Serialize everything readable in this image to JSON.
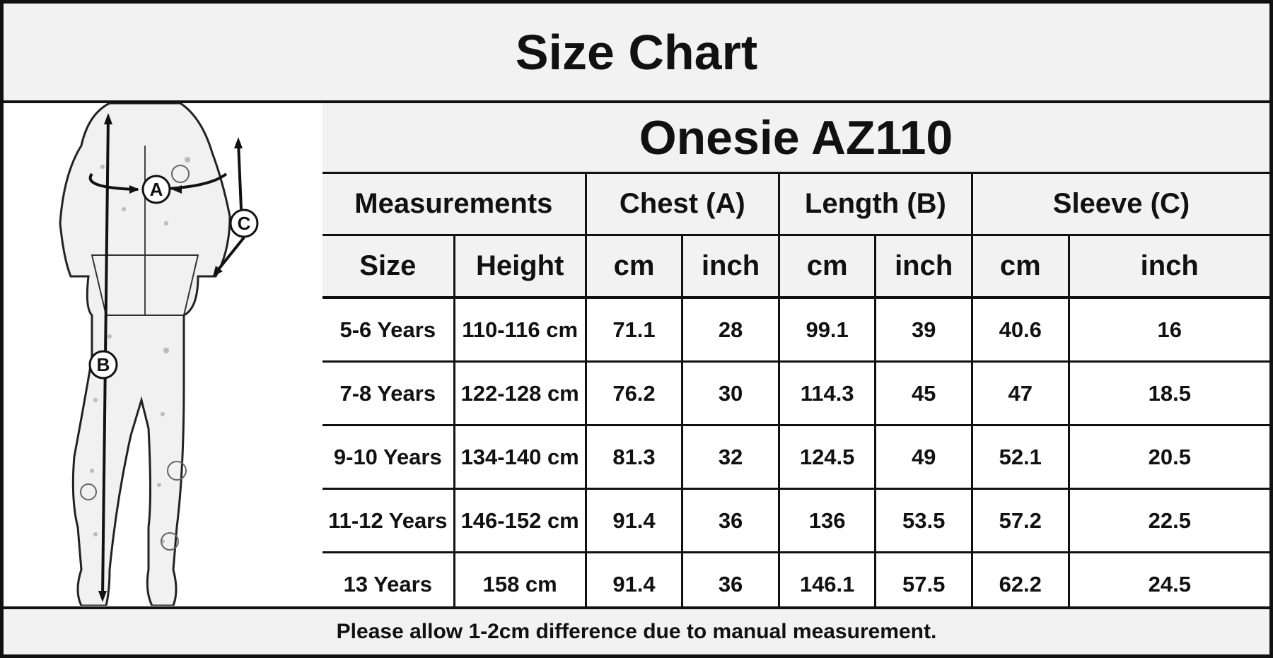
{
  "title": "Size Chart",
  "product": "Onesie AZ110",
  "headers": {
    "measurements": "Measurements",
    "chest": "Chest (A)",
    "length": "Length (B)",
    "sleeve": "Sleeve (C)",
    "size": "Size",
    "height": "Height",
    "cm": "cm",
    "inch": "inch"
  },
  "rows": [
    {
      "size": "5-6 Years",
      "height": "110-116 cm",
      "chest_cm": "71.1",
      "chest_in": "28",
      "length_cm": "99.1",
      "length_in": "39",
      "sleeve_cm": "40.6",
      "sleeve_in": "16"
    },
    {
      "size": "7-8 Years",
      "height": "122-128 cm",
      "chest_cm": "76.2",
      "chest_in": "30",
      "length_cm": "114.3",
      "length_in": "45",
      "sleeve_cm": "47",
      "sleeve_in": "18.5"
    },
    {
      "size": "9-10 Years",
      "height": "134-140 cm",
      "chest_cm": "81.3",
      "chest_in": "32",
      "length_cm": "124.5",
      "length_in": "49",
      "sleeve_cm": "52.1",
      "sleeve_in": "20.5"
    },
    {
      "size": "11-12 Years",
      "height": "146-152 cm",
      "chest_cm": "91.4",
      "chest_in": "36",
      "length_cm": "136",
      "length_in": "53.5",
      "sleeve_cm": "57.2",
      "sleeve_in": "22.5"
    },
    {
      "size": "13 Years",
      "height": "158 cm",
      "chest_cm": "91.4",
      "chest_in": "36",
      "length_cm": "146.1",
      "length_in": "57.5",
      "sleeve_cm": "62.2",
      "sleeve_in": "24.5"
    }
  ],
  "figure": {
    "marker_a": "A",
    "marker_b": "B",
    "marker_c": "C"
  },
  "footer_note": "Please allow 1-2cm difference due to manual measurement."
}
